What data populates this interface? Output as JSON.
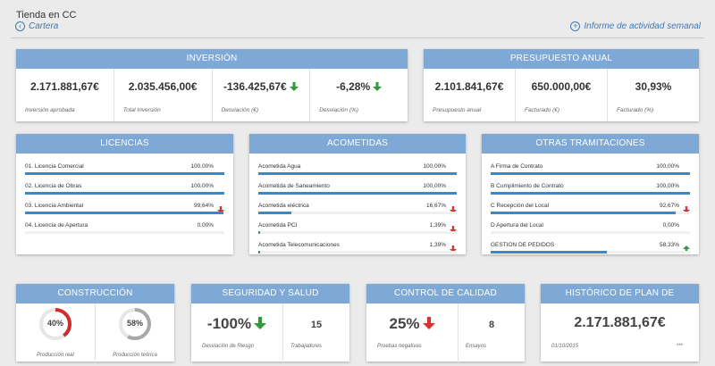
{
  "header": {
    "title": "Tienda en CC",
    "back_label": "Cartera",
    "report_label": "Informe de actividad semanal"
  },
  "colors": {
    "up": "#2e9b3a",
    "down": "#d9322f",
    "bar": "#3f86c4",
    "header": "#7ea8d6"
  },
  "inversion": {
    "title": "INVERSIÓN",
    "stats": [
      {
        "value": "2.171.881,67€",
        "label": "Inversión aprobada"
      },
      {
        "value": "2.035.456,00€",
        "label": "Total Inversión"
      },
      {
        "value": "-136.425,67€",
        "label": "Desviación (€)",
        "trend": "down-green"
      },
      {
        "value": "-6,28%",
        "label": "Desviación (%)",
        "trend": "down-green"
      }
    ]
  },
  "presupuesto": {
    "title": "PRESUPUESTO ANUAL",
    "stats": [
      {
        "value": "2.101.841,67€",
        "label": "Presupuesto anual"
      },
      {
        "value": "650.000,00€",
        "label": "Facturado (€)"
      },
      {
        "value": "30,93%",
        "label": "Facturado (%)"
      }
    ]
  },
  "licencias": {
    "title": "LICENCIAS",
    "rows": [
      {
        "label": "01. Licencia Comercial",
        "value": "100,00%",
        "progress": 1.0
      },
      {
        "label": "02. Licencia de Obras",
        "value": "100,00%",
        "progress": 1.0
      },
      {
        "label": "03. Licencia Ambiental",
        "value": "99,64%",
        "progress": 0.9964,
        "trend": "down-red"
      },
      {
        "label": "04. Licencia de Apertura",
        "value": "0,00%",
        "progress": 0.0
      }
    ]
  },
  "acometidas": {
    "title": "ACOMETIDAS",
    "rows": [
      {
        "label": "Acometida Agua",
        "value": "100,00%",
        "progress": 1.0
      },
      {
        "label": "Acometida de Saneamiento",
        "value": "100,00%",
        "progress": 1.0
      },
      {
        "label": "Acometida eléctrica",
        "value": "16,67%",
        "progress": 0.1667,
        "trend": "down-red"
      },
      {
        "label": "Acometida PCI",
        "value": "1,39%",
        "progress": 0.0139,
        "trend": "down-red"
      },
      {
        "label": "Acometida Telecomunicaciones",
        "value": "1,39%",
        "progress": 0.0139,
        "trend": "down-red"
      }
    ]
  },
  "otras": {
    "title": "OTRAS TRAMITACIONES",
    "rows": [
      {
        "label": "A Firma de Contrato",
        "value": "100,00%",
        "progress": 1.0
      },
      {
        "label": "B Cumplimiento de Contrato",
        "value": "100,00%",
        "progress": 1.0
      },
      {
        "label": "C Recepción del Local",
        "value": "92,67%",
        "progress": 0.9267,
        "trend": "down-red"
      },
      {
        "label": "D Apertura del Local",
        "value": "0,00%",
        "progress": 0.0
      },
      {
        "label": "GESTION DE PEDIDOS",
        "value": "58,33%",
        "progress": 0.5833,
        "trend": "up-green"
      }
    ]
  },
  "construccion": {
    "title": "CONSTRUCCIÓN",
    "donuts": [
      {
        "value": "40%",
        "fraction": 0.4,
        "label": "Producción real",
        "color": "#cc2f2a"
      },
      {
        "value": "58%",
        "fraction": 0.58,
        "label": "Producción teórica",
        "color": "#a8a8a8"
      }
    ]
  },
  "seguridad": {
    "title": "SEGURIDAD Y SALUD",
    "main_value": "-100%",
    "main_label": "Desviación de Riesgo",
    "trend": "down-green",
    "side_value": "15",
    "side_label": "Trabajadores"
  },
  "calidad": {
    "title": "CONTROL DE CALIDAD",
    "main_value": "25%",
    "main_label": "Pruebas negativas",
    "trend": "down-red",
    "side_value": "8",
    "side_label": "Ensayos"
  },
  "historico": {
    "title": "HISTÓRICO DE PLAN DE INVERSIÓN",
    "value": "2.171.881,67€",
    "date": "01/10/2015",
    "more": "***"
  }
}
